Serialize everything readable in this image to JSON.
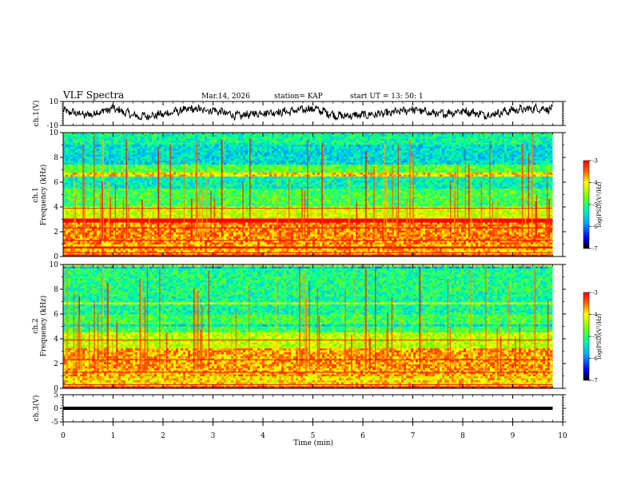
{
  "header": {
    "title": "VLF Spectra",
    "date": "Mar.14, 2026",
    "station": "station= KAP",
    "start": "start  UT =   13: 50: 1"
  },
  "chart_data": [
    {
      "type": "line",
      "panel": "ch1-waveform",
      "ylabel": "ch.1(V)",
      "ylim": [
        -10,
        10
      ],
      "yticks": [
        -10,
        10
      ],
      "ytick_labels": [
        "-10",
        "10"
      ],
      "description_values": "dense oscillating waveform between about -5 and 5 V",
      "x": [
        0,
        0.5,
        1,
        1.5,
        2,
        2.5,
        3,
        3.5,
        4,
        4.5,
        5,
        5.5,
        6,
        6.5,
        7,
        7.5,
        8,
        8.5,
        9,
        9.5,
        9.8
      ],
      "y": [
        3,
        -2,
        6,
        -4,
        -1,
        5,
        4,
        -3,
        1,
        2,
        6,
        -3,
        -2,
        0,
        5,
        -1,
        3,
        -2,
        4,
        6,
        5
      ]
    },
    {
      "type": "heatmap",
      "panel": "ch1-spectrogram",
      "ylabel": "Frequency (kHz)",
      "channel_label": "ch.1",
      "ylim": [
        0,
        10
      ],
      "yticks": [
        0,
        2,
        4,
        6,
        8,
        10
      ],
      "ytick_labels": [
        "0",
        "2",
        "4",
        "6",
        "8",
        "10"
      ],
      "colorbar": {
        "label": "log(PSD)(V²/Hz)",
        "range": [
          -7,
          -3
        ],
        "ticks": [
          -3,
          -4,
          -5,
          -6,
          -7
        ],
        "tick_labels": [
          "-3",
          "-4",
          "-5",
          "-6",
          "-7"
        ]
      },
      "bands": [
        {
          "f0": 0,
          "f1": 1,
          "level": -3.8
        },
        {
          "f0": 1,
          "f1": 3,
          "level": -3.6
        },
        {
          "f0": 3,
          "f1": 4,
          "level": -4.2
        },
        {
          "f0": 4,
          "f1": 5.5,
          "level": -4.9
        },
        {
          "f0": 5.5,
          "f1": 6.5,
          "level": -5.3
        },
        {
          "f0": 6.5,
          "f1": 7.5,
          "level": -4.8
        },
        {
          "f0": 7.5,
          "f1": 9,
          "level": -5.5
        },
        {
          "f0": 9,
          "f1": 10,
          "level": -5.2
        }
      ]
    },
    {
      "type": "heatmap",
      "panel": "ch2-spectrogram",
      "ylabel": "Frequency (kHz)",
      "channel_label": "ch.2",
      "ylim": [
        0,
        10
      ],
      "yticks": [
        0,
        2,
        4,
        6,
        8,
        10
      ],
      "ytick_labels": [
        "0",
        "2",
        "4",
        "6",
        "8",
        "10"
      ],
      "colorbar": {
        "label": "log(PSD)(V²/Hz)",
        "range": [
          -7,
          -3
        ],
        "ticks": [
          -3,
          -4,
          -5,
          -6,
          -7
        ],
        "tick_labels": [
          "-3",
          "-4",
          "-5",
          "-6",
          "-7"
        ]
      },
      "bands": [
        {
          "f0": 0,
          "f1": 1,
          "level": -3.9
        },
        {
          "f0": 1,
          "f1": 3.2,
          "level": -3.7
        },
        {
          "f0": 3.2,
          "f1": 4.5,
          "level": -4.3
        },
        {
          "f0": 4.5,
          "f1": 6,
          "level": -4.9
        },
        {
          "f0": 6,
          "f1": 7.5,
          "level": -5.2
        },
        {
          "f0": 7.5,
          "f1": 10,
          "level": -5.1
        }
      ]
    },
    {
      "type": "line",
      "panel": "ch3-waveform",
      "ylabel": "ch.3(V)",
      "ylim": [
        -5,
        5
      ],
      "yticks": [
        -5,
        0,
        5
      ],
      "ytick_labels": [
        "-5",
        "0",
        "5"
      ],
      "band_center": 0,
      "band_halfwidth": 0.6
    }
  ],
  "xaxis": {
    "label": "Time  (min)",
    "range": [
      0,
      10
    ],
    "ticks": [
      0,
      1,
      2,
      3,
      4,
      5,
      6,
      7,
      8,
      9,
      10
    ],
    "tick_labels": [
      "0",
      "1",
      "2",
      "3",
      "4",
      "5",
      "6",
      "7",
      "8",
      "9",
      "10"
    ],
    "data_end": 9.8
  },
  "colors": {
    "axis": "#000000",
    "background": "#ffffff",
    "trace": "#000000"
  }
}
